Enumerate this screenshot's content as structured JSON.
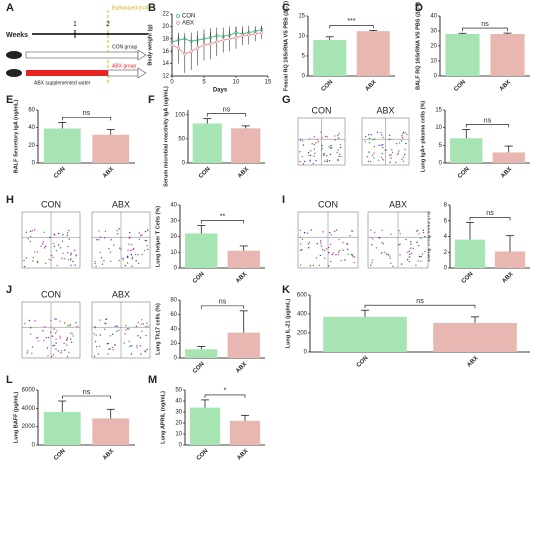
{
  "diagram": {
    "label": "A",
    "axis_label": "Weeks",
    "ticks": [
      "1",
      "2"
    ],
    "event": "Euthanized (n=6)",
    "groups": [
      {
        "name": "CON group"
      },
      {
        "name": "ABX group",
        "treatment": "ABX supplemented water"
      }
    ]
  },
  "chart_data": [
    {
      "type": "line",
      "label": "B",
      "xlabel": "Days",
      "ylabel": "Body weight (g)",
      "x": [
        0,
        1,
        2,
        3,
        4,
        5,
        6,
        7,
        8,
        9,
        10,
        11,
        12,
        13,
        14
      ],
      "xlim": [
        0,
        15
      ],
      "xticks": [
        0,
        5,
        10,
        15
      ],
      "ylim": [
        12,
        22
      ],
      "yticks": [
        12,
        14,
        16,
        18,
        20,
        22
      ],
      "legend": "upper left",
      "series": [
        {
          "name": "CON",
          "color": "#3cb878",
          "values": [
            17.5,
            17.8,
            18,
            17.6,
            17.8,
            18,
            18.2,
            18.5,
            18.4,
            18.6,
            19,
            18.8,
            19,
            19.2,
            19.5
          ],
          "errors": [
            0.8,
            0.7,
            0.9,
            0.8,
            0.7,
            0.8,
            0.9,
            0.8,
            0.7,
            0.8,
            0.9,
            0.8,
            0.7,
            0.8,
            0.6
          ]
        },
        {
          "name": "ABX",
          "color": "#e88a8a",
          "values": [
            17,
            16.5,
            15.5,
            16,
            16.5,
            17,
            17.2,
            17.5,
            17.8,
            18,
            18.2,
            18.5,
            18.6,
            18.8,
            19
          ],
          "errors": [
            1.5,
            2.5,
            3,
            3,
            2.8,
            2.5,
            2.5,
            2.3,
            2,
            2,
            1.8,
            1.5,
            1.5,
            1.2,
            1
          ]
        }
      ]
    },
    {
      "type": "bar",
      "label": "C",
      "ylabel": "Feacal RQ 16SrRNA VS PBS (ΔCT)",
      "categories": [
        "CON",
        "ABX"
      ],
      "values": [
        9,
        11.2
      ],
      "errors": [
        0.8,
        0.2
      ],
      "colors": [
        "#a6e5b3",
        "#e8b7b2"
      ],
      "ylim": [
        0,
        15
      ],
      "yticks": [
        0,
        5,
        10,
        15
      ],
      "annotation": "***"
    },
    {
      "type": "bar",
      "label": "D",
      "ylabel": "BALF RQ 16SrRNA VS PBS (ΔCT)",
      "categories": [
        "CON",
        "ABX"
      ],
      "values": [
        28,
        28
      ],
      "errors": [
        0.5,
        0.6
      ],
      "colors": [
        "#a6e5b3",
        "#e8b7b2"
      ],
      "ylim": [
        0,
        40
      ],
      "yticks": [
        0,
        10,
        20,
        30,
        40
      ],
      "annotation": "ns"
    },
    {
      "type": "bar",
      "label": "E",
      "ylabel": "BALF Secretory IgA (ng/mL)",
      "categories": [
        "CON",
        "ABX"
      ],
      "values": [
        39,
        32
      ],
      "errors": [
        7,
        6
      ],
      "colors": [
        "#a6e5b3",
        "#e8b7b2"
      ],
      "ylim": [
        0,
        60
      ],
      "yticks": [
        0,
        20,
        40,
        60
      ],
      "annotation": "ns"
    },
    {
      "type": "bar",
      "label": "F",
      "ylabel": "Serum microbial reactivity IgA (ug/mL)",
      "categories": [
        "CON",
        "ABX"
      ],
      "values": [
        82,
        72
      ],
      "errors": [
        10,
        5
      ],
      "colors": [
        "#a6e5b3",
        "#e8b7b2"
      ],
      "ylim": [
        0,
        110
      ],
      "yticks": [
        0,
        50,
        100
      ],
      "annotation": "ns"
    },
    {
      "type": "bar",
      "label": "G",
      "flow_labels": [
        "CON",
        "ABX"
      ],
      "ylabel": "Lung IgA+ plasma cells (%)",
      "categories": [
        "CON",
        "ABX"
      ],
      "values": [
        7,
        3
      ],
      "errors": [
        2.5,
        1.8
      ],
      "colors": [
        "#a6e5b3",
        "#e8b7b2"
      ],
      "ylim": [
        0,
        15
      ],
      "yticks": [
        0,
        5,
        10,
        15
      ],
      "annotation": "ns"
    },
    {
      "type": "bar",
      "label": "H",
      "flow_labels": [
        "CON",
        "ABX"
      ],
      "ylabel": "Lung helper T Cells (%)",
      "categories": [
        "CON",
        "ABX"
      ],
      "values": [
        22,
        11
      ],
      "errors": [
        5,
        3
      ],
      "colors": [
        "#a6e5b3",
        "#e8b7b2"
      ],
      "ylim": [
        0,
        40
      ],
      "yticks": [
        0,
        10,
        20,
        30,
        40
      ],
      "annotation": "**"
    },
    {
      "type": "bar",
      "label": "I",
      "flow_labels": [
        "CON",
        "ABX"
      ],
      "ylabel": "Lung Treg cells (%)",
      "categories": [
        "CON",
        "ABX"
      ],
      "values": [
        3.6,
        2.1
      ],
      "errors": [
        2.2,
        2
      ],
      "colors": [
        "#a6e5b3",
        "#e8b7b2"
      ],
      "ylim": [
        0,
        8
      ],
      "yticks": [
        0,
        2,
        4,
        6,
        8
      ],
      "annotation": "ns"
    },
    {
      "type": "bar",
      "label": "J",
      "flow_labels": [
        "CON",
        "ABX"
      ],
      "ylabel": "Lung Th17 cells (%)",
      "categories": [
        "CON",
        "ABX"
      ],
      "values": [
        12,
        35
      ],
      "errors": [
        4,
        30
      ],
      "colors": [
        "#a6e5b3",
        "#e8b7b2"
      ],
      "ylim": [
        0,
        80
      ],
      "yticks": [
        0,
        20,
        40,
        60,
        80
      ],
      "annotation": "ns"
    },
    {
      "type": "bar",
      "label": "K",
      "ylabel": "Lung IL-21 (pg/mL)",
      "categories": [
        "CON",
        "ABX"
      ],
      "values": [
        370,
        305
      ],
      "errors": [
        70,
        65
      ],
      "colors": [
        "#a6e5b3",
        "#e8b7b2"
      ],
      "ylim": [
        0,
        600
      ],
      "yticks": [
        0,
        200,
        400,
        600
      ],
      "annotation": "ns"
    },
    {
      "type": "bar",
      "label": "L",
      "ylabel": "Lung BAFF (pg/mL)",
      "categories": [
        "CON",
        "ABX"
      ],
      "values": [
        3600,
        2900
      ],
      "errors": [
        1200,
        1000
      ],
      "colors": [
        "#a6e5b3",
        "#e8b7b2"
      ],
      "ylim": [
        0,
        6000
      ],
      "yticks": [
        0,
        2000,
        4000,
        6000
      ],
      "annotation": "ns"
    },
    {
      "type": "bar",
      "label": "M",
      "ylabel": "Lung APRIL (ng/mL)",
      "categories": [
        "CON",
        "ABX"
      ],
      "values": [
        34,
        22
      ],
      "errors": [
        7,
        5
      ],
      "colors": [
        "#a6e5b3",
        "#e8b7b2"
      ],
      "ylim": [
        0,
        50
      ],
      "yticks": [
        0,
        10,
        20,
        30,
        40,
        50
      ],
      "annotation": "*"
    }
  ]
}
